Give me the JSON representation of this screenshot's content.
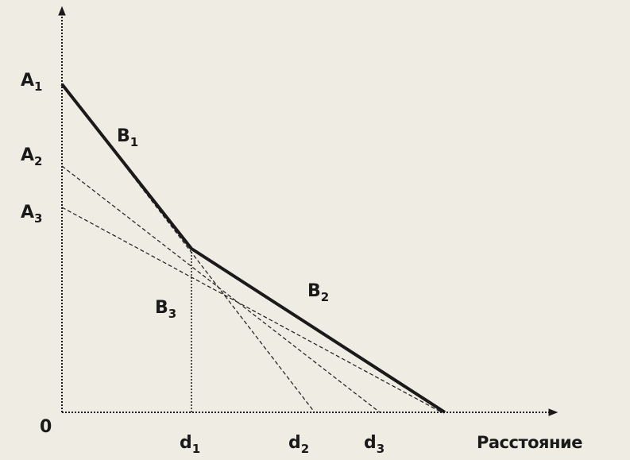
{
  "labels": {
    "origin": "0",
    "a1": {
      "main": "A",
      "sub": "1"
    },
    "a2": {
      "main": "A",
      "sub": "2"
    },
    "a3": {
      "main": "A",
      "sub": "3"
    },
    "b1": {
      "main": "B",
      "sub": "1"
    },
    "b2": {
      "main": "B",
      "sub": "2"
    },
    "b3": {
      "main": "B",
      "sub": "3"
    },
    "d1": {
      "main": "d",
      "sub": "1"
    },
    "d2": {
      "main": "d",
      "sub": "2"
    },
    "d3": {
      "main": "d",
      "sub": "3"
    },
    "x_axis": "Расстояние"
  },
  "colors": {
    "background": "#efece4",
    "ink": "#1a1a1a"
  }
}
